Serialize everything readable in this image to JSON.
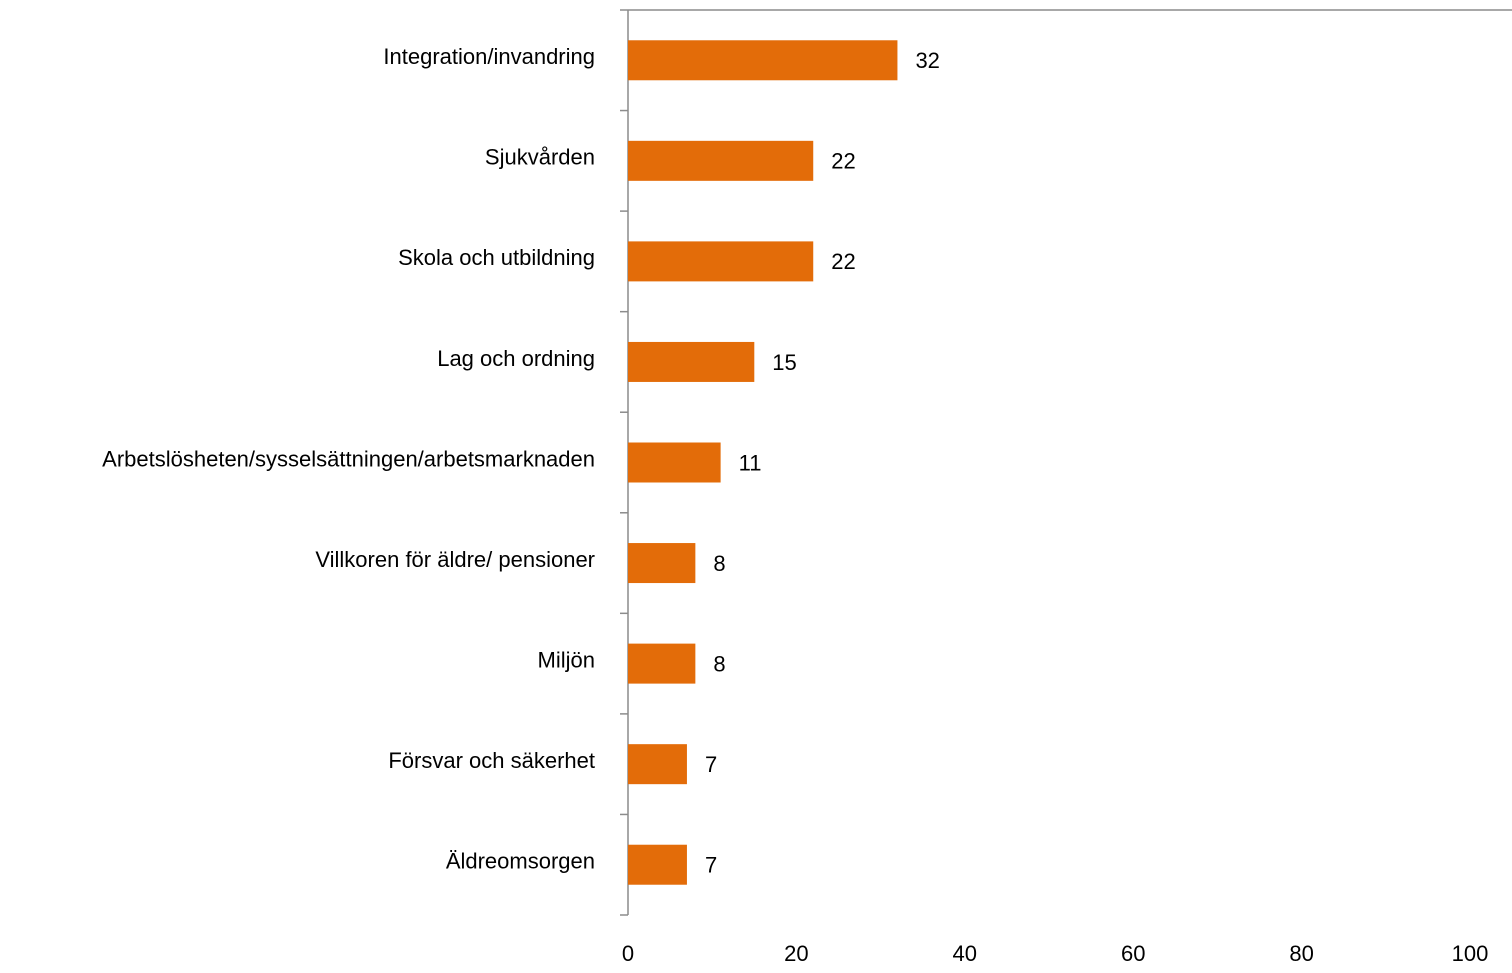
{
  "chart_data": {
    "type": "bar",
    "orientation": "horizontal",
    "categories": [
      "Integration/invandring",
      "Sjukvården",
      "Skola och utbildning",
      "Lag och ordning",
      "Arbetslösheten/sysselsättningen/arbetsmarknaden",
      "Villkoren för äldre/ pensioner",
      "Miljön",
      "Försvar och säkerhet",
      "Äldreomsorgen"
    ],
    "values": [
      32,
      22,
      22,
      15,
      11,
      8,
      8,
      7,
      7
    ],
    "color": "#e36c09",
    "xlim": [
      0,
      100
    ],
    "xticks": [
      0,
      20,
      40,
      60,
      80,
      100
    ],
    "grid": false
  }
}
